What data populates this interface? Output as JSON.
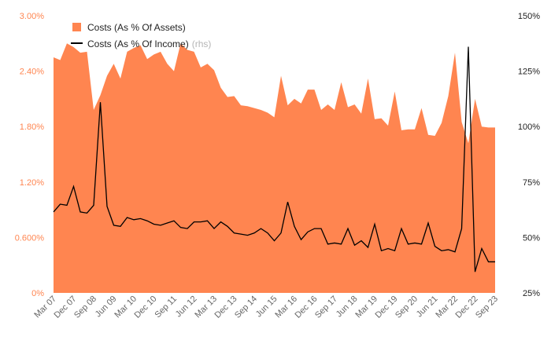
{
  "chart_data": {
    "type": "area",
    "x": [
      "Mar 07",
      "Jun 07",
      "Sep 07",
      "Dec 07",
      "Mar 08",
      "Jun 08",
      "Sep 08",
      "Dec 08",
      "Mar 09",
      "Jun 09",
      "Sep 09",
      "Dec 09",
      "Mar 10",
      "Jun 10",
      "Sep 10",
      "Dec 10",
      "Mar 11",
      "Jun 11",
      "Sep 11",
      "Dec 11",
      "Mar 12",
      "Jun 12",
      "Sep 12",
      "Dec 12",
      "Mar 13",
      "Jun 13",
      "Sep 13",
      "Dec 13",
      "Mar 14",
      "Jun 14",
      "Sep 14",
      "Dec 14",
      "Mar 15",
      "Jun 15",
      "Sep 15",
      "Dec 15",
      "Mar 16",
      "Jun 16",
      "Sep 16",
      "Dec 16",
      "Mar 17",
      "Jun 17",
      "Sep 17",
      "Dec 17",
      "Mar 18",
      "Jun 18",
      "Sep 18",
      "Dec 18",
      "Mar 19",
      "Jun 19",
      "Sep 19",
      "Dec 19",
      "Mar 20",
      "Jun 20",
      "Sep 20",
      "Dec 20",
      "Mar 21",
      "Jun 21",
      "Sep 21",
      "Dec 21",
      "Mar 22",
      "Jun 22",
      "Sep 22",
      "Dec 22",
      "Mar 23",
      "Jun 23",
      "Sep 23"
    ],
    "xtick_labels": [
      "Mar 07",
      "Dec 07",
      "Sep 08",
      "Jun 09",
      "Mar 10",
      "Dec 10",
      "Sep 11",
      "Jun 12",
      "Mar 13",
      "Dec 13",
      "Sep 14",
      "Jun 15",
      "Mar 16",
      "Dec 16",
      "Sep 17",
      "Jun 18",
      "Mar 19",
      "Dec 19",
      "Sep 20",
      "Jun 21",
      "Mar 22",
      "Dec 22",
      "Sep 23"
    ],
    "series": [
      {
        "name": "Costs (As % Of Assets)",
        "axis": "left",
        "kind": "area",
        "color": "#ff8550",
        "values": [
          2.55,
          2.52,
          2.7,
          2.66,
          2.6,
          2.61,
          1.98,
          2.14,
          2.35,
          2.48,
          2.32,
          2.61,
          2.65,
          2.68,
          2.53,
          2.58,
          2.61,
          2.48,
          2.4,
          2.7,
          2.63,
          2.61,
          2.44,
          2.48,
          2.41,
          2.22,
          2.12,
          2.13,
          2.03,
          2.02,
          2.0,
          1.98,
          1.95,
          1.9,
          2.35,
          2.03,
          2.1,
          2.05,
          2.2,
          2.2,
          1.98,
          2.04,
          1.98,
          2.28,
          2.01,
          2.04,
          1.94,
          2.32,
          1.88,
          1.89,
          1.81,
          2.18,
          1.76,
          1.77,
          1.77,
          2.0,
          1.71,
          1.7,
          1.84,
          2.13,
          2.6,
          1.85,
          1.62,
          2.1,
          1.8,
          1.79,
          1.79
        ]
      },
      {
        "name": "Costs (As % Of Income)",
        "legend_suffix": "(rhs)",
        "axis": "right",
        "kind": "line",
        "color": "#000000",
        "values": [
          61.5,
          65,
          64.5,
          73,
          61.5,
          61,
          64.5,
          111,
          64,
          55.5,
          55,
          59,
          58,
          58.5,
          57.5,
          56,
          55.5,
          56.5,
          57.5,
          54.5,
          54,
          57,
          57,
          57.5,
          54,
          57,
          55,
          52,
          51.5,
          51,
          52,
          54,
          52,
          48.5,
          52,
          66,
          55,
          49,
          52.5,
          54,
          54,
          47,
          47.5,
          47,
          54,
          46.5,
          48.5,
          45.5,
          56,
          44,
          45,
          44,
          54,
          47,
          47.5,
          47,
          56.5,
          46,
          44,
          44.5,
          43.5,
          54,
          136,
          34.5,
          45,
          39,
          39
        ]
      }
    ],
    "y_left": {
      "lim": [
        0,
        3.0
      ],
      "ticks": [
        0,
        0.6,
        1.2,
        1.8,
        2.4,
        3.0
      ],
      "tick_labels": [
        "0%",
        "0.600%",
        "1.20%",
        "1.80%",
        "2.40%",
        "3.00%"
      ]
    },
    "y_right": {
      "lim": [
        25,
        150
      ],
      "ticks": [
        25,
        50,
        75,
        100,
        125,
        150
      ],
      "tick_labels": [
        "25%",
        "50%",
        "75%",
        "100%",
        "125%",
        "150%"
      ]
    },
    "legend_position": "top-left",
    "grid": false,
    "left_axis_color": "#ff8550",
    "right_axis_color": "#222222",
    "xtick_color": "#666666"
  }
}
